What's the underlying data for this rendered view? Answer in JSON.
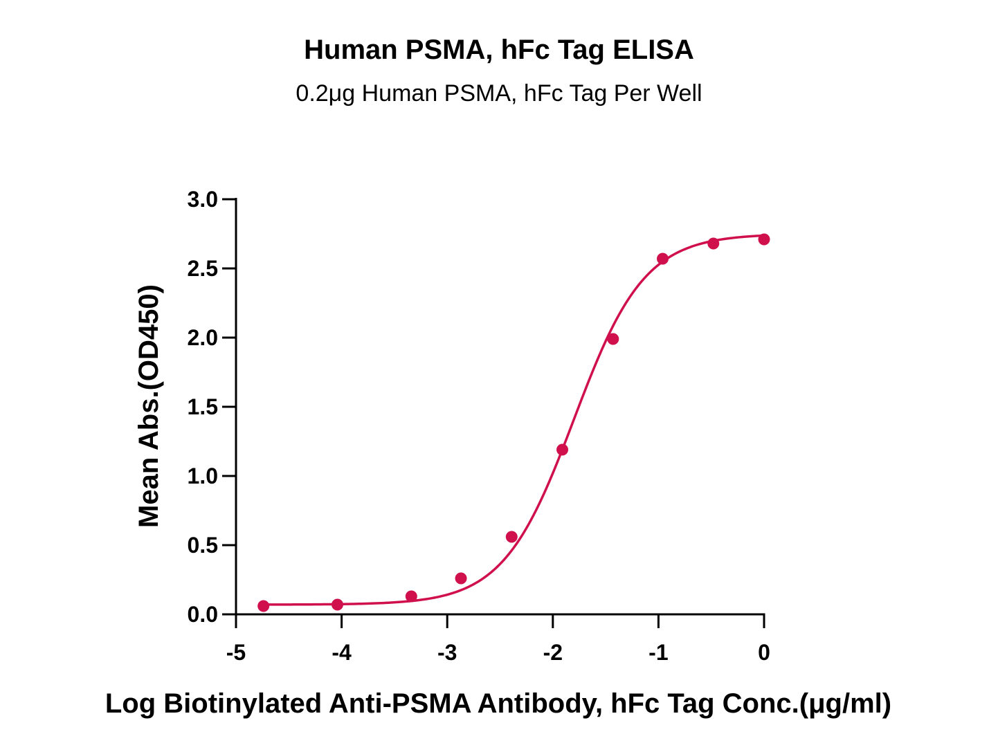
{
  "chart_data": {
    "type": "scatter",
    "title": "Human PSMA, hFc Tag ELISA",
    "subtitle": "0.2μg Human PSMA, hFc Tag Per Well",
    "xlabel": "Log Biotinylated Anti-PSMA Antibody, hFc Tag Conc.(μg/ml)",
    "ylabel": "Mean Abs.(OD450)",
    "xlim": [
      -5,
      0
    ],
    "ylim": [
      0,
      3.0
    ],
    "x_ticks": [
      -5,
      -4,
      -3,
      -2,
      -1,
      0
    ],
    "x_tick_labels": [
      "-5",
      "-4",
      "-3",
      "-2",
      "-1",
      "0"
    ],
    "y_ticks": [
      0,
      0.5,
      1.0,
      1.5,
      2.0,
      2.5,
      3.0
    ],
    "y_tick_labels": [
      "0.0",
      "0.5",
      "1.0",
      "1.5",
      "2.0",
      "2.5",
      "3.0"
    ],
    "grid": false,
    "color": "#d0104c",
    "series": [
      {
        "x": [
          -4.74,
          -4.04,
          -3.34,
          -2.87,
          -2.39,
          -1.91,
          -1.43,
          -0.96,
          -0.48,
          0.0
        ],
        "y": [
          0.06,
          0.07,
          0.13,
          0.26,
          0.56,
          1.19,
          1.99,
          2.57,
          2.68,
          2.71
        ]
      }
    ],
    "fit": {
      "type": "4PL",
      "bottom": 0.07,
      "top": 2.75,
      "logEC50": -1.8,
      "hill": 1.3
    }
  }
}
